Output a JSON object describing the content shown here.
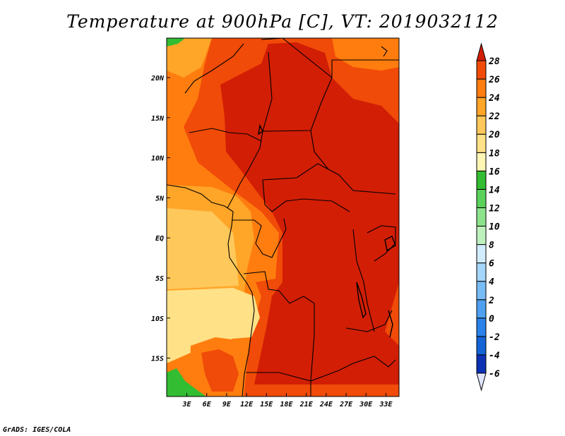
{
  "title": "Temperature at 900hPa [C], VT: 2019032112",
  "credit": "GrADS: IGES/COLA",
  "axes": {
    "x_ticks": [
      "3E",
      "6E",
      "9E",
      "12E",
      "15E",
      "18E",
      "21E",
      "24E",
      "27E",
      "30E",
      "33E"
    ],
    "y_ticks": [
      "20N",
      "15N",
      "10N",
      "5N",
      "EQ",
      "5S",
      "10S",
      "15S"
    ]
  },
  "colorbar": {
    "levels": [
      "-6",
      "-4",
      "-2",
      "0",
      "2",
      "4",
      "6",
      "8",
      "10",
      "12",
      "14",
      "16",
      "18",
      "20",
      "22",
      "24",
      "26",
      "28"
    ],
    "colors": [
      "#1e0f82",
      "#0c31b4",
      "#1463d7",
      "#2a82ea",
      "#4ea0f0",
      "#78bcf5",
      "#a4d6fa",
      "#d2ecff",
      "#bef0be",
      "#8ce38c",
      "#5ad25a",
      "#32bd32",
      "#fff5b4",
      "#ffe187",
      "#ffc85a",
      "#ffa528",
      "#ff7d0f",
      "#f04b08",
      "#d21e05"
    ],
    "low_color": "#e1e6ff",
    "high_color": "#d21e05"
  },
  "legend_colors": {
    "t14_16": "#32bd32",
    "t18_20": "#ffe187",
    "t20_22": "#ffc85a",
    "t22_24": "#ffa528",
    "t24_26": "#ff7d0f",
    "t26_28": "#f04b08",
    "t28_plus": "#d21e05"
  }
}
